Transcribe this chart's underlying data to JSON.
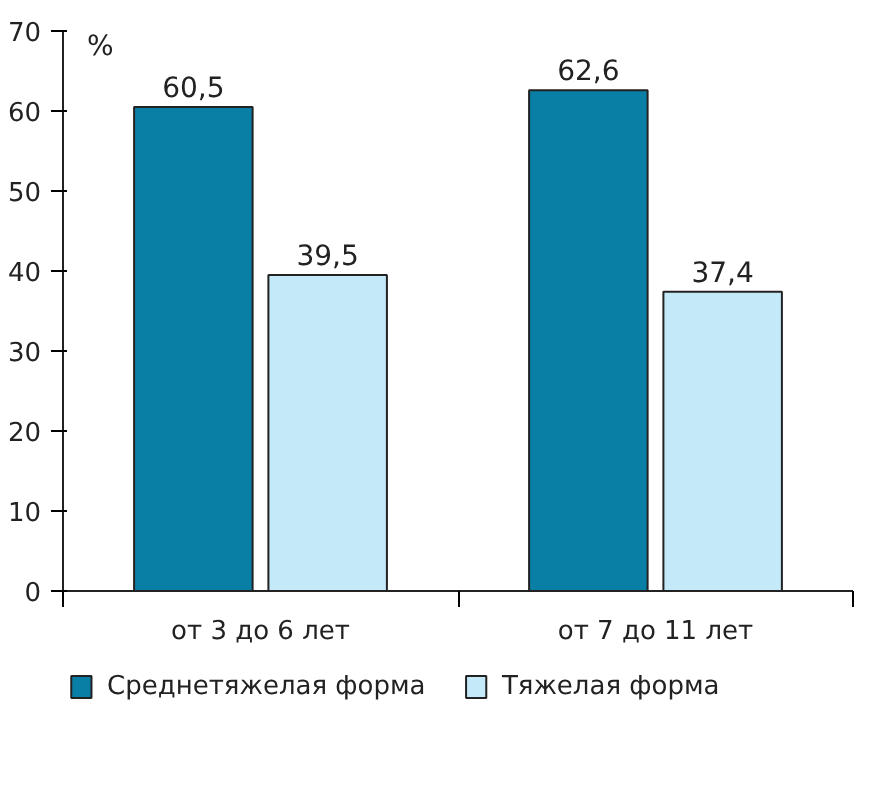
{
  "chart_data": {
    "type": "bar",
    "ylabel": "%",
    "categories": [
      "от 3 до 6 лет",
      "от 7 до 11 лет"
    ],
    "series": [
      {
        "name": "Среднетяжелая форма",
        "color": "#0a7fa6",
        "values": [
          60.5,
          62.6
        ],
        "value_labels": [
          "60,5",
          "62,6"
        ]
      },
      {
        "name": "Тяжелая форма",
        "color": "#c4eafa",
        "values": [
          39.5,
          37.4
        ],
        "value_labels": [
          "39,5",
          "37,4"
        ]
      }
    ],
    "ylim": [
      0,
      70
    ],
    "yticks": [
      0,
      10,
      20,
      30,
      40,
      50,
      60,
      70
    ],
    "grid": false,
    "legend": "bottom"
  }
}
